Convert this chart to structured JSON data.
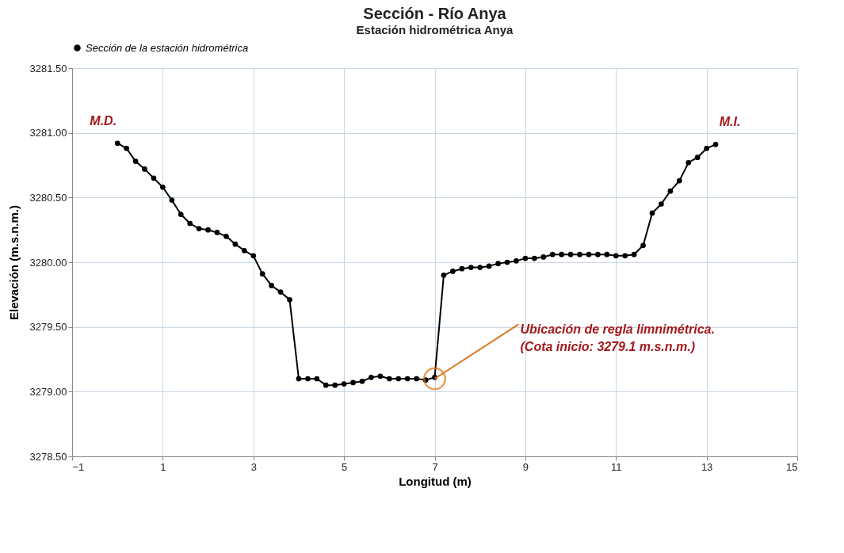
{
  "chart_data": {
    "type": "line",
    "title": "Sección - Río Anya",
    "subtitle": "Estación hidrométrica Anya",
    "xlabel": "Longitud (m)",
    "ylabel": "Elevación  (m.s.n.m.)",
    "xlim": [
      -1,
      15
    ],
    "xticks": [
      -1,
      1,
      3,
      5,
      7,
      9,
      11,
      13,
      15
    ],
    "ylim": [
      3278.5,
      3281.5
    ],
    "yticks": [
      {
        "value": 3278.5,
        "label": "3278.50"
      },
      {
        "value": 3279.0,
        "label": "3279.00"
      },
      {
        "value": 3279.5,
        "label": "3279.50"
      },
      {
        "value": 3280.0,
        "label": "3280.00"
      },
      {
        "value": 3280.5,
        "label": "3280.50"
      },
      {
        "value": 3281.0,
        "label": "3281.00"
      },
      {
        "value": 3281.5,
        "label": "3281.50"
      }
    ],
    "grid": true,
    "legend": "top",
    "marker": "circle",
    "line_style": "solid",
    "x": [
      0.0,
      0.2,
      0.4,
      0.6,
      0.8,
      1.0,
      1.2,
      1.4,
      1.6,
      1.8,
      2.0,
      2.2,
      2.4,
      2.6,
      2.8,
      3.0,
      3.2,
      3.4,
      3.6,
      3.8,
      4.0,
      4.2,
      4.4,
      4.6,
      4.8,
      5.0,
      5.2,
      5.4,
      5.6,
      5.8,
      6.0,
      6.2,
      6.4,
      6.6,
      6.8,
      7.0,
      7.2,
      7.4,
      7.6,
      7.8,
      8.0,
      8.2,
      8.4,
      8.6,
      8.8,
      9.0,
      9.2,
      9.4,
      9.6,
      9.8,
      10.0,
      10.2,
      10.4,
      10.6,
      10.8,
      11.0,
      11.2,
      11.4,
      11.6,
      11.8,
      12.0,
      12.2,
      12.4,
      12.6,
      12.8,
      13.0,
      13.2
    ],
    "series": [
      {
        "name": "Sección de la estación hidrométrica",
        "color": "#000000",
        "values": [
          3280.92,
          3280.88,
          3280.78,
          3280.72,
          3280.65,
          3280.58,
          3280.48,
          3280.37,
          3280.3,
          3280.26,
          3280.25,
          3280.23,
          3280.2,
          3280.14,
          3280.09,
          3280.05,
          3279.91,
          3279.82,
          3279.77,
          3279.71,
          3279.1,
          3279.1,
          3279.1,
          3279.05,
          3279.05,
          3279.06,
          3279.07,
          3279.08,
          3279.11,
          3279.12,
          3279.1,
          3279.1,
          3279.1,
          3279.1,
          3279.09,
          3279.11,
          3279.9,
          3279.93,
          3279.95,
          3279.96,
          3279.96,
          3279.97,
          3279.99,
          3280.0,
          3280.01,
          3280.03,
          3280.03,
          3280.04,
          3280.06,
          3280.06,
          3280.06,
          3280.06,
          3280.06,
          3280.06,
          3280.06,
          3280.05,
          3280.05,
          3280.06,
          3280.13,
          3280.38,
          3280.45,
          3280.55,
          3280.63,
          3280.77,
          3280.81,
          3280.88,
          3280.91
        ]
      }
    ],
    "annotations": [
      "M.D.",
      "M.I.",
      {
        "text": "Ubicación de regla limnimétrica.\n(Cota inicio: 3279.1 m.s.n.m.)",
        "x": 7.0,
        "y": 3279.1
      }
    ]
  }
}
